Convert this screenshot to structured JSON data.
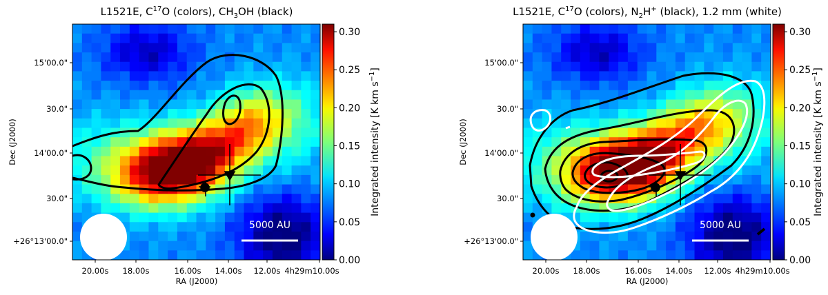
{
  "chart_data": [
    {
      "type": "heatmap",
      "title_parts": [
        "L1521E, C",
        "17",
        "O (colors), CH",
        "3",
        "OH (black)"
      ],
      "xlabel": "RA (J2000)",
      "ylabel": "Dec (J2000)",
      "x_ticks": [
        "20.00s",
        "18.00s",
        "16.00s",
        "14.00s",
        "12.00s",
        "4h29m10.00s"
      ],
      "y_ticks": [
        "15'00.0\"",
        "30.0\"",
        "14'00.0\"",
        "30.0\"",
        "+26°13'00.0\""
      ],
      "colorbar": {
        "label": "Integrated intensity [K km s",
        "label_sup": "−1",
        "label_end": "]",
        "ticks": [
          "0.00",
          "0.05",
          "0.10",
          "0.15",
          "0.20",
          "0.25",
          "0.30"
        ],
        "range": [
          0.0,
          0.31
        ],
        "colormap": "jet"
      },
      "peak": {
        "ra_offset_s": 16.3,
        "dec_offset_arcsec": 8,
        "value": 0.29
      },
      "contours": {
        "color": "#000000",
        "levels": 3
      },
      "scale_bar": {
        "label": "5000 AU"
      },
      "markers": [
        {
          "shape": "circle",
          "label": ""
        },
        {
          "shape": "triangle-down",
          "label": ""
        }
      ]
    },
    {
      "type": "heatmap",
      "title_parts": [
        "L1521E, C",
        "17",
        "O (colors), N",
        "2",
        "H",
        "+",
        " (black), 1.2 mm (white)"
      ],
      "xlabel": "RA (J2000)",
      "ylabel": "Dec (J2000)",
      "x_ticks": [
        "20.00s",
        "18.00s",
        "16.00s",
        "14.00s",
        "12.00s",
        "4h29m10.00s"
      ],
      "y_ticks": [
        "15'00.0\"",
        "30.0\"",
        "14'00.0\"",
        "30.0\"",
        "+26°13'00.0\""
      ],
      "colorbar": {
        "label": "Integrated intensity [K km s",
        "label_sup": "−1",
        "label_end": "]",
        "ticks": [
          "0.00",
          "0.05",
          "0.10",
          "0.15",
          "0.20",
          "0.25",
          "0.30"
        ],
        "range": [
          0.0,
          0.31
        ],
        "colormap": "jet"
      },
      "contours": {
        "color_black": "#000000",
        "color_white": "#ffffff",
        "black_levels": 5,
        "white_levels": 3
      },
      "scale_bar": {
        "label": "5000 AU"
      },
      "markers": [
        {
          "shape": "circle",
          "label": ""
        },
        {
          "shape": "triangle-down",
          "label": ""
        }
      ]
    }
  ]
}
